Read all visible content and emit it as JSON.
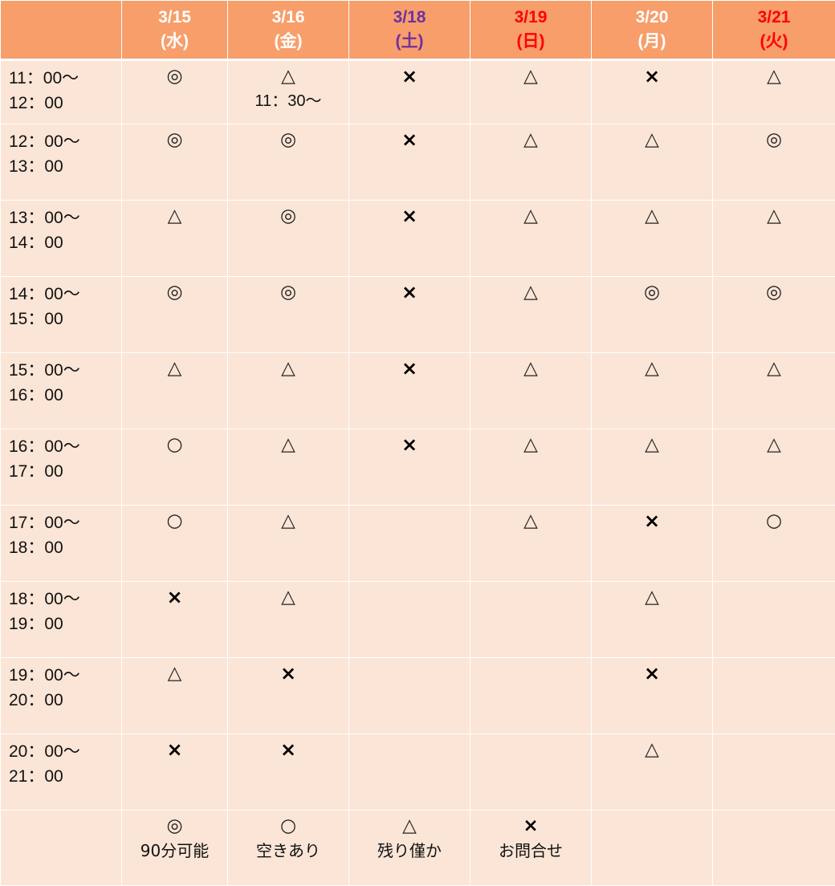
{
  "colors": {
    "header_bg": "#f79e6b",
    "cell_bg": "#fbe5d6",
    "weekday": "#ffffff",
    "saturday": "#7030a0",
    "holiday": "#ff0000"
  },
  "days": [
    {
      "date": "3/15",
      "dow": "(水)",
      "color": "#ffffff"
    },
    {
      "date": "3/16",
      "dow": "(金)",
      "color": "#ffffff"
    },
    {
      "date": "3/18",
      "dow": "(土)",
      "color": "#7030a0"
    },
    {
      "date": "3/19",
      "dow": "(日)",
      "color": "#ff0000"
    },
    {
      "date": "3/20",
      "dow": "(月)",
      "color": "#ffffff"
    },
    {
      "date": "3/21",
      "dow": "(火)",
      "color": "#ff0000"
    }
  ],
  "slots": [
    {
      "start": "11：00〜",
      "end": "12：00",
      "cells": [
        "◎",
        "△",
        "×",
        "△",
        "×",
        "△"
      ],
      "notes": [
        "",
        "11：30〜",
        "",
        "",
        "",
        ""
      ]
    },
    {
      "start": "12：00〜",
      "end": "13：00",
      "cells": [
        "◎",
        "◎",
        "×",
        "△",
        "△",
        "◎"
      ],
      "notes": [
        "",
        "",
        "",
        "",
        "",
        ""
      ]
    },
    {
      "start": "13：00〜",
      "end": "14：00",
      "cells": [
        "△",
        "◎",
        "×",
        "△",
        "△",
        "△"
      ],
      "notes": [
        "",
        "",
        "",
        "",
        "",
        ""
      ]
    },
    {
      "start": "14：00〜",
      "end": "15：00",
      "cells": [
        "◎",
        "◎",
        "×",
        "△",
        "◎",
        "◎"
      ],
      "notes": [
        "",
        "",
        "",
        "",
        "",
        ""
      ]
    },
    {
      "start": "15：00〜",
      "end": "16：00",
      "cells": [
        "△",
        "△",
        "×",
        "△",
        "△",
        "△"
      ],
      "notes": [
        "",
        "",
        "",
        "",
        "",
        ""
      ]
    },
    {
      "start": "16：00〜",
      "end": "17：00",
      "cells": [
        "○",
        "△",
        "×",
        "△",
        "△",
        "△"
      ],
      "notes": [
        "",
        "",
        "",
        "",
        "",
        ""
      ]
    },
    {
      "start": "17：00〜",
      "end": "18：00",
      "cells": [
        "○",
        "△",
        "",
        "△",
        "×",
        "○"
      ],
      "notes": [
        "",
        "",
        "",
        "",
        "",
        ""
      ]
    },
    {
      "start": "18：00〜",
      "end": "19：00",
      "cells": [
        "×",
        "△",
        "",
        "",
        "△",
        ""
      ],
      "notes": [
        "",
        "",
        "",
        "",
        "",
        ""
      ]
    },
    {
      "start": "19：00〜",
      "end": "20：00",
      "cells": [
        "△",
        "×",
        "",
        "",
        "×",
        ""
      ],
      "notes": [
        "",
        "",
        "",
        "",
        "",
        ""
      ]
    },
    {
      "start": "20：00〜",
      "end": "21：00",
      "cells": [
        "×",
        "×",
        "",
        "",
        "△",
        ""
      ],
      "notes": [
        "",
        "",
        "",
        "",
        "",
        ""
      ]
    }
  ],
  "legend": [
    {
      "symbol": "◎",
      "label": "90分可能"
    },
    {
      "symbol": "○",
      "label": "空きあり"
    },
    {
      "symbol": "△",
      "label": "残り僅か"
    },
    {
      "symbol": "×",
      "label": "お問合せ"
    }
  ]
}
